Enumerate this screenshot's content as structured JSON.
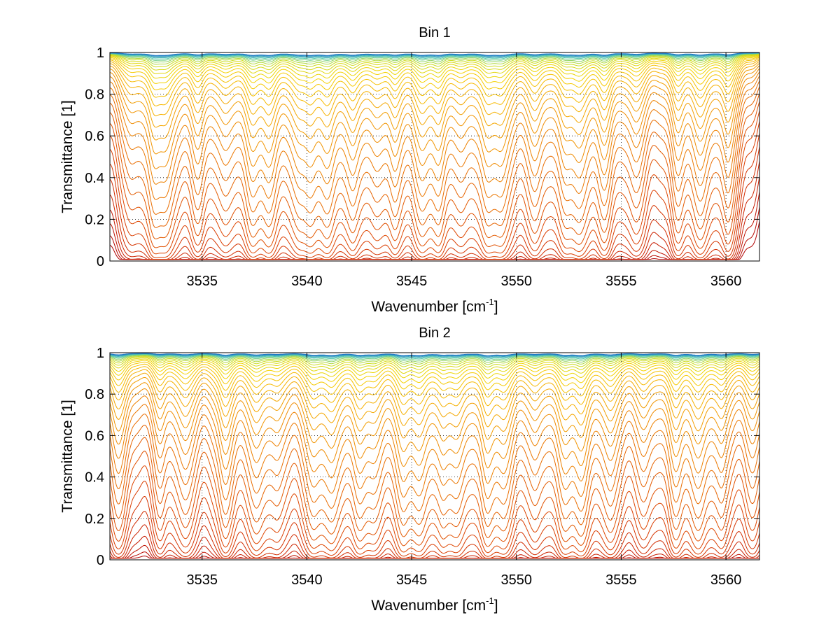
{
  "chart_data": [
    {
      "type": "line",
      "title": "Bin 1",
      "xlabel": "Wavenumber [cm",
      "xlabel_sup": "-1",
      "xlabel_tail": "]",
      "ylabel": "Transmittance [1]",
      "xlim": [
        3530.6,
        3561.6
      ],
      "ylim": [
        0,
        1
      ],
      "xticks": [
        "3535",
        "3540",
        "3545",
        "3550",
        "3555",
        "3560"
      ],
      "yticks": [
        "0",
        "0.2",
        "0.4",
        "0.6",
        "0.8",
        "1"
      ],
      "grid": true,
      "n_curves": 36,
      "line_centers": [
        3531.6,
        3532.7,
        3533.3,
        3534.8,
        3536.1,
        3537.4,
        3538.2,
        3539.6,
        3540.2,
        3541.0,
        3542.2,
        3543.3,
        3544.2,
        3545.5,
        3546.3,
        3547.4,
        3548.6,
        3549.3,
        3550.9,
        3552.3,
        3553.0,
        3554.2,
        3555.7,
        3557.7,
        3558.8,
        3560.1
      ],
      "colormap": [
        "#b00000",
        "#cc2200",
        "#dd4400",
        "#e86a00",
        "#f09000",
        "#f6b400",
        "#f4d400",
        "#c8dc20",
        "#4fc8b0",
        "#1e78c8"
      ]
    },
    {
      "type": "line",
      "title": "Bin 2",
      "xlabel": "Wavenumber [cm",
      "xlabel_sup": "-1",
      "xlabel_tail": "]",
      "ylabel": "Transmittance [1]",
      "xlim": [
        3530.6,
        3561.6
      ],
      "ylim": [
        0,
        1
      ],
      "xticks": [
        "3535",
        "3540",
        "3545",
        "3550",
        "3555",
        "3560"
      ],
      "yticks": [
        "0",
        "0.2",
        "0.4",
        "0.6",
        "0.8",
        "1"
      ],
      "grid": true,
      "n_curves": 36,
      "line_centers": [
        3531.0,
        3533.0,
        3534.2,
        3536.1,
        3537.6,
        3538.6,
        3540.3,
        3541.2,
        3542.5,
        3543.2,
        3544.6,
        3545.4,
        3546.5,
        3547.2,
        3548.6,
        3549.4,
        3550.9,
        3552.3,
        3553.1,
        3554.5,
        3556.1,
        3557.6,
        3558.7,
        3559.8,
        3561.3
      ],
      "colormap": [
        "#b00000",
        "#cc2200",
        "#dd4400",
        "#e86a00",
        "#f09000",
        "#f6b400",
        "#f4d400",
        "#c8dc20",
        "#4fc8b0",
        "#1e78c8"
      ]
    }
  ]
}
